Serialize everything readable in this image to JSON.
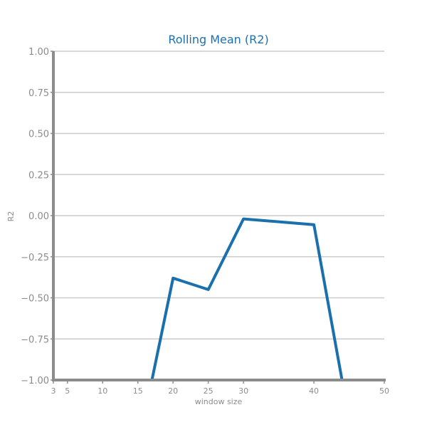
{
  "chart_data": {
    "type": "line",
    "title": "Rolling Mean (R2)",
    "xlabel": "window size",
    "ylabel": "R2",
    "xlim": [
      3,
      50
    ],
    "ylim": [
      -1.0,
      1.0
    ],
    "x_ticks": [
      3,
      5,
      10,
      15,
      20,
      25,
      30,
      40,
      50
    ],
    "y_ticks": [
      1.0,
      0.75,
      0.5,
      0.25,
      0.0,
      -0.25,
      -0.5,
      -0.75,
      -1.0
    ],
    "y_tick_labels": [
      "1.00",
      "0.75",
      "0.50",
      "0.25",
      "0.00",
      "−0.25",
      "−0.50",
      "−0.75",
      "−1.00"
    ],
    "grid": true,
    "series": [
      {
        "name": "R2",
        "x": [
          3,
          5,
          10,
          15,
          17,
          20,
          25,
          30,
          40,
          44,
          50
        ],
        "values": [
          -1.0,
          -1.0,
          -1.0,
          -1.0,
          -1.0,
          -0.38,
          -0.45,
          -0.02,
          -0.055,
          -1.0,
          -1.0
        ]
      }
    ],
    "colors": {
      "title": "#1f6fab",
      "line": "#1a6fad",
      "grid": "#cccccc",
      "axis": "#8c8c8c",
      "text": "#8c8c8c"
    }
  }
}
